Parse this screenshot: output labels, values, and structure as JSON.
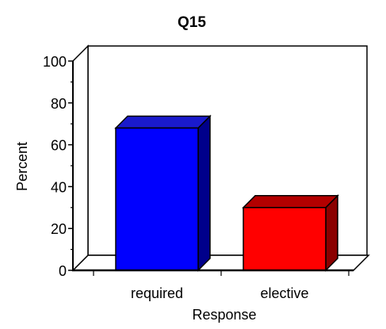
{
  "chart_data": {
    "type": "bar",
    "title": "Q15",
    "xlabel": "Response",
    "ylabel": "Percent",
    "categories": [
      "required",
      "elective"
    ],
    "values": [
      68,
      30
    ],
    "ylim": [
      0,
      100
    ],
    "yticks": [
      "0",
      "20",
      "40",
      "60",
      "80",
      "100"
    ],
    "grid": false,
    "legend": "none",
    "three_d": true,
    "colors": {
      "bars": [
        "#0000ff",
        "#ff0000"
      ],
      "bar_sides": [
        "#00008b",
        "#8b0000"
      ],
      "bar_tops": [
        "#1a1acc",
        "#b30000"
      ]
    }
  }
}
